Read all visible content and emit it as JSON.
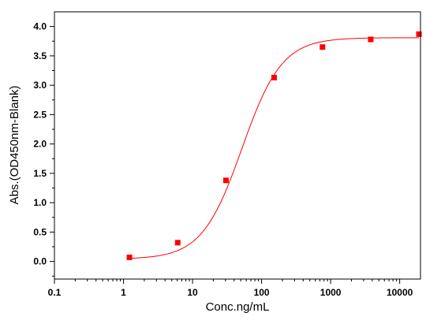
{
  "chart_data": {
    "type": "scatter",
    "title": "",
    "xlabel": "Conc.ng/mL",
    "ylabel": "Abs.(OD450nm-Blank)",
    "x_scale": "log",
    "xlim": [
      0.1,
      20000
    ],
    "ylim": [
      -0.3,
      4.25
    ],
    "x_ticks": [
      0.1,
      1,
      10,
      100,
      1000,
      10000
    ],
    "x_tick_labels": [
      "0.1",
      "1",
      "10",
      "100",
      "1000",
      "10000"
    ],
    "y_ticks": [
      0.0,
      0.5,
      1.0,
      1.5,
      2.0,
      2.5,
      3.0,
      3.5,
      4.0
    ],
    "y_tick_labels": [
      "0.0",
      "0.5",
      "1.0",
      "1.5",
      "2.0",
      "2.5",
      "3.0",
      "3.5",
      "4.0"
    ],
    "grid": false,
    "legend": "none",
    "series": [
      {
        "mode": "markers",
        "marker": "square",
        "color": "#ff0000",
        "x": [
          1.22,
          6.1,
          30.5,
          152,
          762,
          3810,
          19000
        ],
        "y": [
          0.07,
          0.32,
          1.38,
          3.13,
          3.65,
          3.78,
          3.87
        ]
      },
      {
        "mode": "line",
        "fit": "4PL",
        "color": "#ff0000",
        "params": {
          "bottom": 0.04,
          "top": 3.81,
          "ec50": 52,
          "hill": 1.5
        }
      }
    ]
  }
}
